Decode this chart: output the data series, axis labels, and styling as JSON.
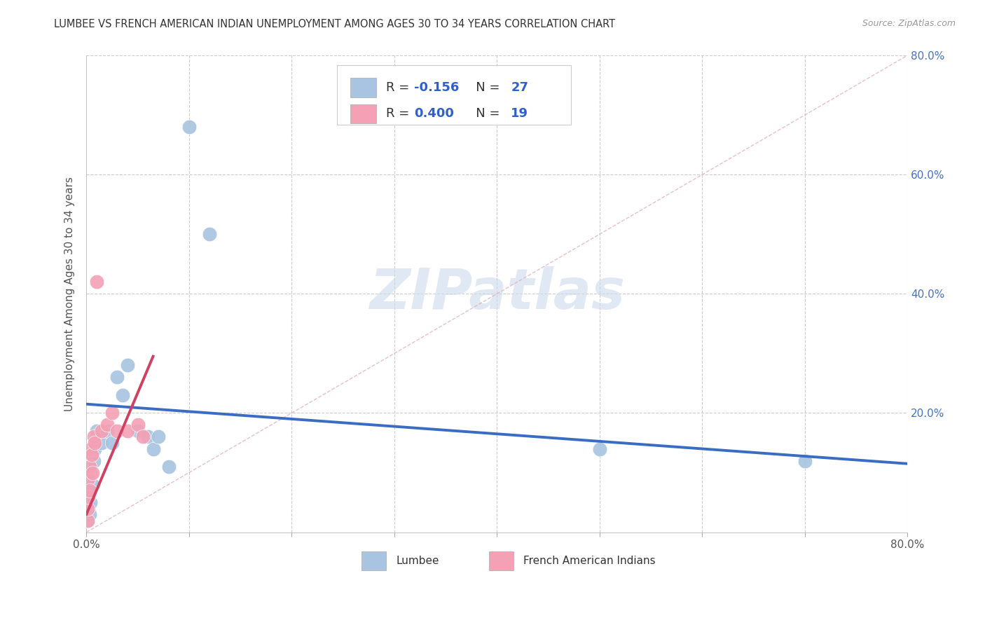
{
  "title": "LUMBEE VS FRENCH AMERICAN INDIAN UNEMPLOYMENT AMONG AGES 30 TO 34 YEARS CORRELATION CHART",
  "source": "Source: ZipAtlas.com",
  "ylabel": "Unemployment Among Ages 30 to 34 years",
  "xlim": [
    0.0,
    0.8
  ],
  "ylim": [
    0.0,
    0.8
  ],
  "lumbee_R": -0.156,
  "lumbee_N": 27,
  "french_R": 0.4,
  "french_N": 19,
  "lumbee_color": "#a8c4e0",
  "french_color": "#f4a0b5",
  "lumbee_line_color": "#3b6cc4",
  "french_line_color": "#d04060",
  "watermark_color": "#ccdaeb",
  "lumbee_x": [
    0.001,
    0.001,
    0.002,
    0.003,
    0.003,
    0.004,
    0.004,
    0.005,
    0.006,
    0.007,
    0.008,
    0.01,
    0.015,
    0.02,
    0.025,
    0.03,
    0.035,
    0.04,
    0.05,
    0.06,
    0.065,
    0.07,
    0.08,
    0.1,
    0.12,
    0.5,
    0.7
  ],
  "lumbee_y": [
    0.02,
    0.05,
    0.04,
    0.03,
    0.07,
    0.05,
    0.1,
    0.13,
    0.08,
    0.12,
    0.14,
    0.17,
    0.15,
    0.17,
    0.15,
    0.26,
    0.23,
    0.28,
    0.17,
    0.16,
    0.14,
    0.16,
    0.11,
    0.68,
    0.5,
    0.14,
    0.12
  ],
  "french_x": [
    0.001,
    0.001,
    0.002,
    0.002,
    0.003,
    0.003,
    0.004,
    0.005,
    0.006,
    0.007,
    0.008,
    0.01,
    0.015,
    0.02,
    0.025,
    0.03,
    0.04,
    0.05,
    0.055
  ],
  "french_y": [
    0.02,
    0.04,
    0.06,
    0.09,
    0.07,
    0.11,
    0.14,
    0.13,
    0.1,
    0.16,
    0.15,
    0.42,
    0.17,
    0.18,
    0.2,
    0.17,
    0.17,
    0.18,
    0.16
  ],
  "lumbee_trend_x": [
    0.0,
    0.8
  ],
  "lumbee_trend_y": [
    0.215,
    0.115
  ],
  "french_trend_x": [
    0.0,
    0.065
  ],
  "french_trend_y": [
    0.03,
    0.295
  ]
}
